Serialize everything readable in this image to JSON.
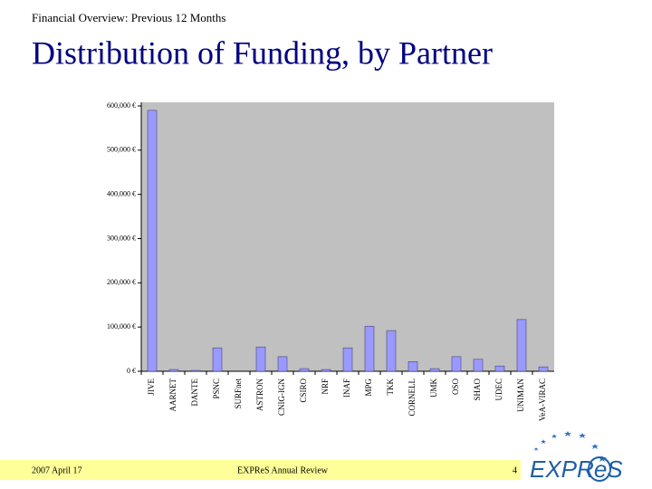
{
  "header": {
    "subtitle": "Financial Overview: Previous 12 Months",
    "title": "Distribution of Funding, by Partner"
  },
  "chart_data": {
    "type": "bar",
    "categories": [
      "JIVE",
      "AARNET",
      "DANTE",
      "PSNC",
      "SURFnet",
      "ASTRON",
      "CNIG-IGN",
      "CSIRO",
      "NRF",
      "INAF",
      "MPG",
      "TKK",
      "CORNELL",
      "UMK",
      "OSO",
      "SHAO",
      "UDEC",
      "UNIMAN",
      "VeA-VIRAC"
    ],
    "values": [
      590000,
      4000,
      2000,
      53000,
      0,
      55000,
      33000,
      6000,
      4000,
      53000,
      102000,
      92000,
      22000,
      6000,
      33000,
      27000,
      12000,
      117000,
      10000
    ],
    "color": "#9999ff",
    "ylim": [
      0,
      600000
    ],
    "yticks": [
      {
        "value": 0,
        "label": "0 €"
      },
      {
        "value": 100000,
        "label": "100,000 €"
      },
      {
        "value": 200000,
        "label": "200,000 €"
      },
      {
        "value": 300000,
        "label": "300,000 €"
      },
      {
        "value": 400000,
        "label": "400,000 €"
      },
      {
        "value": 500000,
        "label": "500,000 €"
      },
      {
        "value": 600000,
        "label": "600,000 €"
      }
    ]
  },
  "footer": {
    "date": "2007 April 17",
    "event": "EXPReS Annual Review",
    "page": "4",
    "logo": [
      "EXPR",
      "e",
      "S"
    ]
  }
}
